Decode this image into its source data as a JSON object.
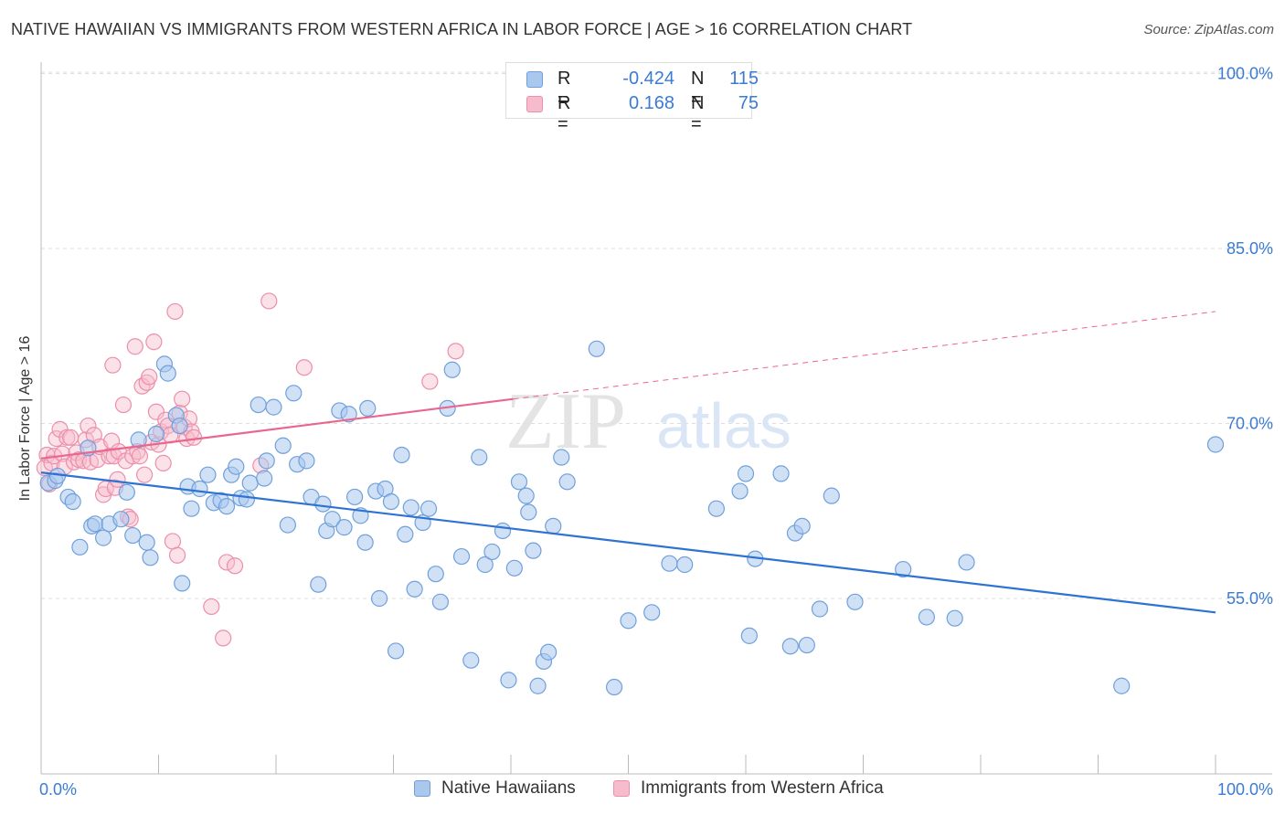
{
  "header": {
    "title": "NATIVE HAWAIIAN VS IMMIGRANTS FROM WESTERN AFRICA IN LABOR FORCE | AGE > 16 CORRELATION CHART",
    "source": "Source: ZipAtlas.com"
  },
  "watermark": {
    "zip": "ZIP",
    "atlas": "atlas"
  },
  "legend_top": {
    "rows": [
      {
        "r_label": "R =",
        "r_value": "-0.424",
        "n_label": "N =",
        "n_value": "115"
      },
      {
        "r_label": "R =",
        "r_value": "0.168",
        "n_label": "N =",
        "n_value": "75"
      }
    ]
  },
  "legend_bottom": {
    "series_a": "Native Hawaiians",
    "series_b": "Immigrants from Western Africa"
  },
  "colors": {
    "blue_fill": "#aac8ee",
    "blue_stroke": "#6fa0dc",
    "blue_line": "#2f73d2",
    "pink_fill": "#f6bccd",
    "pink_stroke": "#ec8fab",
    "pink_line": "#e9678f",
    "axis_text": "#3a7bd5",
    "grid": "#dddddd"
  },
  "chart_data": {
    "type": "scatter",
    "title": "NATIVE HAWAIIAN VS IMMIGRANTS FROM WESTERN AFRICA IN LABOR FORCE | AGE > 16 CORRELATION CHART",
    "xlabel": "",
    "ylabel": "In Labor Force | Age > 16",
    "xlim": [
      0,
      100
    ],
    "ylim": [
      40,
      102
    ],
    "x_tick_labels": [
      "0.0%",
      "100.0%"
    ],
    "y_ticks": [
      55,
      70,
      85,
      100
    ],
    "y_tick_labels": [
      "55.0%",
      "70.0%",
      "85.0%",
      "100.0%"
    ],
    "grid": true,
    "series": [
      {
        "name": "Native Hawaiians",
        "color": "#6fa0dc",
        "trend": {
          "x": [
            0,
            100
          ],
          "y": [
            65.8,
            53.8
          ],
          "style": "solid"
        },
        "points": [
          [
            0.6,
            64.9
          ],
          [
            1.2,
            65.1
          ],
          [
            1.4,
            65.5
          ],
          [
            2.3,
            63.7
          ],
          [
            2.7,
            63.3
          ],
          [
            3.3,
            59.4
          ],
          [
            4.0,
            67.9
          ],
          [
            4.3,
            61.2
          ],
          [
            4.6,
            61.4
          ],
          [
            5.3,
            60.2
          ],
          [
            5.8,
            61.4
          ],
          [
            6.8,
            61.8
          ],
          [
            7.3,
            64.1
          ],
          [
            7.8,
            60.4
          ],
          [
            8.3,
            68.6
          ],
          [
            9.0,
            59.8
          ],
          [
            9.3,
            58.5
          ],
          [
            9.8,
            69.1
          ],
          [
            10.5,
            75.1
          ],
          [
            10.8,
            74.3
          ],
          [
            11.5,
            70.7
          ],
          [
            11.8,
            69.8
          ],
          [
            12.0,
            56.3
          ],
          [
            12.5,
            64.6
          ],
          [
            12.8,
            62.7
          ],
          [
            13.5,
            64.4
          ],
          [
            14.2,
            65.6
          ],
          [
            14.7,
            63.2
          ],
          [
            15.3,
            63.4
          ],
          [
            15.8,
            62.9
          ],
          [
            16.2,
            65.6
          ],
          [
            16.6,
            66.3
          ],
          [
            17.0,
            63.6
          ],
          [
            17.5,
            63.5
          ],
          [
            17.8,
            64.9
          ],
          [
            18.5,
            71.6
          ],
          [
            19.0,
            65.3
          ],
          [
            19.2,
            66.8
          ],
          [
            19.8,
            71.4
          ],
          [
            20.6,
            68.1
          ],
          [
            21.0,
            61.3
          ],
          [
            21.5,
            72.6
          ],
          [
            21.8,
            66.5
          ],
          [
            22.6,
            66.8
          ],
          [
            23.0,
            63.7
          ],
          [
            23.6,
            56.2
          ],
          [
            24.0,
            63.1
          ],
          [
            24.3,
            60.8
          ],
          [
            24.8,
            61.8
          ],
          [
            25.4,
            71.1
          ],
          [
            25.8,
            61.1
          ],
          [
            26.2,
            70.8
          ],
          [
            26.7,
            63.7
          ],
          [
            27.2,
            62.1
          ],
          [
            27.6,
            59.8
          ],
          [
            27.8,
            71.3
          ],
          [
            28.5,
            64.2
          ],
          [
            28.8,
            55.0
          ],
          [
            29.3,
            64.4
          ],
          [
            29.8,
            63.3
          ],
          [
            30.2,
            50.5
          ],
          [
            30.7,
            67.3
          ],
          [
            31.0,
            60.5
          ],
          [
            31.5,
            62.8
          ],
          [
            31.8,
            55.8
          ],
          [
            32.5,
            61.5
          ],
          [
            33.0,
            62.7
          ],
          [
            33.6,
            57.1
          ],
          [
            34.0,
            54.7
          ],
          [
            34.6,
            71.3
          ],
          [
            35.0,
            74.6
          ],
          [
            35.8,
            58.6
          ],
          [
            36.6,
            49.7
          ],
          [
            37.3,
            67.1
          ],
          [
            37.8,
            57.9
          ],
          [
            38.4,
            59.0
          ],
          [
            39.3,
            60.8
          ],
          [
            39.8,
            48.0
          ],
          [
            40.3,
            57.6
          ],
          [
            40.7,
            65.0
          ],
          [
            41.3,
            63.8
          ],
          [
            41.5,
            62.4
          ],
          [
            41.9,
            59.1
          ],
          [
            42.3,
            47.5
          ],
          [
            42.8,
            49.6
          ],
          [
            43.2,
            50.4
          ],
          [
            43.6,
            61.2
          ],
          [
            44.3,
            67.1
          ],
          [
            44.8,
            65.0
          ],
          [
            47.3,
            76.4
          ],
          [
            48.8,
            47.4
          ],
          [
            50.0,
            53.1
          ],
          [
            52.0,
            53.8
          ],
          [
            53.5,
            58.0
          ],
          [
            54.8,
            57.9
          ],
          [
            57.5,
            62.7
          ],
          [
            59.5,
            64.2
          ],
          [
            60.0,
            65.7
          ],
          [
            60.3,
            51.8
          ],
          [
            60.8,
            58.4
          ],
          [
            63.0,
            65.7
          ],
          [
            63.8,
            50.9
          ],
          [
            64.2,
            60.6
          ],
          [
            64.8,
            61.2
          ],
          [
            65.2,
            51.0
          ],
          [
            66.3,
            54.1
          ],
          [
            67.3,
            63.8
          ],
          [
            69.3,
            54.7
          ],
          [
            73.4,
            57.5
          ],
          [
            75.4,
            53.4
          ],
          [
            77.8,
            53.3
          ],
          [
            78.8,
            58.1
          ],
          [
            92.0,
            47.5
          ],
          [
            100.0,
            68.2
          ]
        ]
      },
      {
        "name": "Immigrants from Western Africa",
        "color": "#ec8fab",
        "trend": {
          "x": [
            0,
            40.2,
            100
          ],
          "y": [
            67.0,
            72.1,
            79.6
          ],
          "style": "solid-then-dashed"
        },
        "points": [
          [
            0.3,
            66.2
          ],
          [
            0.5,
            67.3
          ],
          [
            0.7,
            64.8
          ],
          [
            0.9,
            66.6
          ],
          [
            1.1,
            67.2
          ],
          [
            1.3,
            68.7
          ],
          [
            1.6,
            69.5
          ],
          [
            1.8,
            67.4
          ],
          [
            2.0,
            66.3
          ],
          [
            2.2,
            68.8
          ],
          [
            2.5,
            68.8
          ],
          [
            2.8,
            66.7
          ],
          [
            3.0,
            67.5
          ],
          [
            3.2,
            66.9
          ],
          [
            3.6,
            66.8
          ],
          [
            3.8,
            68.6
          ],
          [
            4.0,
            69.8
          ],
          [
            4.2,
            66.7
          ],
          [
            4.5,
            69.0
          ],
          [
            4.8,
            66.9
          ],
          [
            5.0,
            68.0
          ],
          [
            5.3,
            63.9
          ],
          [
            5.5,
            64.4
          ],
          [
            5.8,
            67.2
          ],
          [
            6.0,
            68.5
          ],
          [
            6.1,
            75.0
          ],
          [
            6.2,
            67.2
          ],
          [
            6.3,
            64.5
          ],
          [
            6.5,
            65.2
          ],
          [
            6.6,
            67.6
          ],
          [
            7.0,
            71.6
          ],
          [
            7.2,
            66.8
          ],
          [
            7.4,
            62.0
          ],
          [
            7.6,
            61.8
          ],
          [
            7.8,
            67.2
          ],
          [
            8.0,
            76.6
          ],
          [
            8.2,
            67.6
          ],
          [
            8.4,
            67.2
          ],
          [
            8.6,
            73.2
          ],
          [
            8.8,
            65.6
          ],
          [
            9.0,
            73.5
          ],
          [
            9.2,
            74.0
          ],
          [
            9.4,
            68.4
          ],
          [
            9.6,
            77.0
          ],
          [
            9.8,
            71.0
          ],
          [
            10.0,
            68.2
          ],
          [
            10.2,
            69.3
          ],
          [
            10.4,
            66.6
          ],
          [
            10.6,
            70.3
          ],
          [
            10.8,
            69.8
          ],
          [
            11.0,
            69.0
          ],
          [
            11.2,
            59.9
          ],
          [
            11.4,
            79.6
          ],
          [
            11.6,
            58.7
          ],
          [
            11.8,
            70.9
          ],
          [
            12.0,
            72.1
          ],
          [
            12.2,
            69.7
          ],
          [
            12.4,
            68.7
          ],
          [
            12.6,
            70.4
          ],
          [
            12.8,
            69.3
          ],
          [
            13.0,
            68.8
          ],
          [
            14.5,
            54.3
          ],
          [
            15.5,
            51.6
          ],
          [
            15.8,
            58.1
          ],
          [
            16.5,
            57.8
          ],
          [
            18.7,
            66.4
          ],
          [
            19.4,
            80.5
          ],
          [
            22.4,
            74.8
          ],
          [
            33.1,
            73.6
          ],
          [
            35.3,
            76.2
          ]
        ]
      }
    ]
  }
}
